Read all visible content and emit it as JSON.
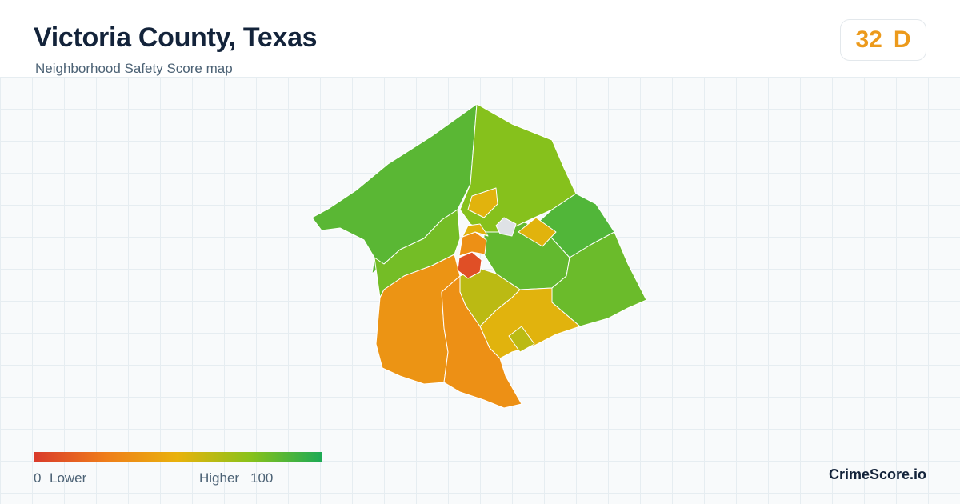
{
  "header": {
    "title": "Victoria County, Texas",
    "subtitle": "Neighborhood Safety Score map"
  },
  "score": {
    "value": "32",
    "grade": "D"
  },
  "legend": {
    "min": "0",
    "low_label": "Lower",
    "high_label": "Higher",
    "max": "100"
  },
  "brand": "CrimeScore.io",
  "colors": {
    "low": "#d93a2b",
    "mid_low": "#ef7d1a",
    "mid": "#e9b20c",
    "mid_high": "#8ac21a",
    "high": "#1daa55",
    "no_data": "#dfe2e6",
    "grade_accent": "#ec9a1c"
  },
  "map": {
    "region_scores": {
      "northwest": 86,
      "north": 76,
      "northeast": 88,
      "east": 82,
      "center_east": 84,
      "south_center": 62,
      "southeast": 52,
      "southwest": 36,
      "south": 34,
      "west_inner": 80,
      "downtown_core": 8
    }
  }
}
